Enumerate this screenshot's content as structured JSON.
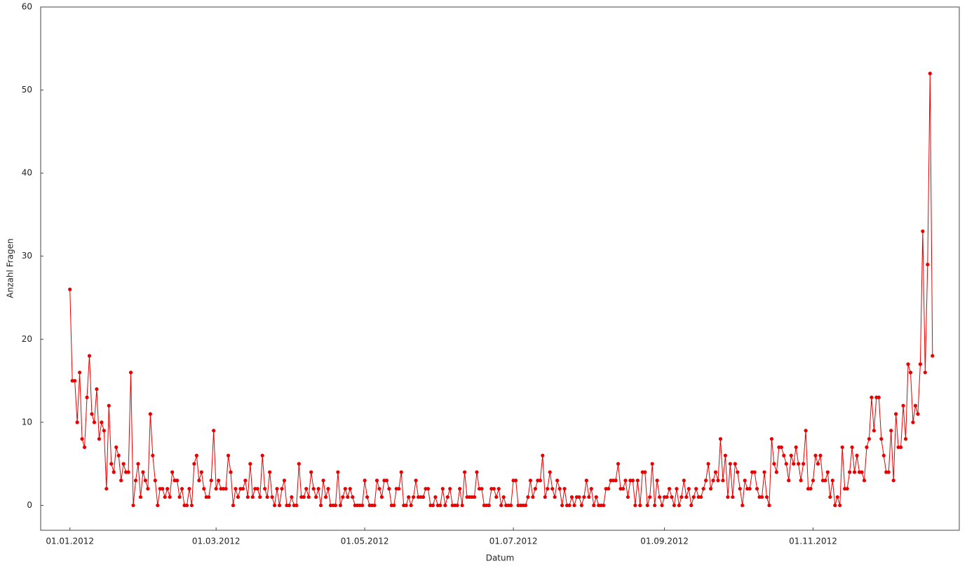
{
  "chart_data": {
    "type": "line",
    "x_label": "Datum",
    "y_label": "Anzahl Fragen",
    "x": [
      "01.01.2012",
      "02.01.2012",
      "03.01.2012",
      "04.01.2012",
      "05.01.2012",
      "06.01.2012",
      "07.01.2012",
      "08.01.2012",
      "09.01.2012",
      "10.01.2012",
      "11.01.2012",
      "12.01.2012",
      "13.01.2012",
      "14.01.2012",
      "15.01.2012",
      "16.01.2012",
      "17.01.2012",
      "18.01.2012",
      "19.01.2012",
      "20.01.2012",
      "21.01.2012",
      "22.01.2012",
      "23.01.2012",
      "24.01.2012",
      "25.01.2012",
      "26.01.2012",
      "27.01.2012",
      "28.01.2012",
      "29.01.2012",
      "30.01.2012",
      "31.01.2012",
      "01.02.2012",
      "02.02.2012",
      "03.02.2012",
      "04.02.2012",
      "05.02.2012",
      "06.02.2012",
      "07.02.2012",
      "08.02.2012",
      "09.02.2012",
      "10.02.2012",
      "11.02.2012",
      "12.02.2012",
      "13.02.2012",
      "14.02.2012",
      "15.02.2012",
      "16.02.2012",
      "17.02.2012",
      "18.02.2012",
      "19.02.2012",
      "20.02.2012",
      "21.02.2012",
      "22.02.2012",
      "23.02.2012",
      "24.02.2012",
      "25.02.2012",
      "26.02.2012",
      "27.02.2012",
      "28.02.2012",
      "29.02.2012",
      "01.03.2012",
      "02.03.2012",
      "03.03.2012",
      "04.03.2012",
      "05.03.2012",
      "06.03.2012",
      "07.03.2012",
      "08.03.2012",
      "09.03.2012",
      "10.03.2012",
      "11.03.2012",
      "12.03.2012",
      "13.03.2012",
      "14.03.2012",
      "15.03.2012",
      "16.03.2012",
      "17.03.2012",
      "18.03.2012",
      "19.03.2012",
      "20.03.2012",
      "21.03.2012",
      "22.03.2012",
      "23.03.2012",
      "24.03.2012",
      "25.03.2012",
      "26.03.2012",
      "27.03.2012",
      "28.03.2012",
      "29.03.2012",
      "30.03.2012",
      "31.03.2012",
      "01.04.2012",
      "02.04.2012",
      "03.04.2012",
      "04.04.2012",
      "05.04.2012",
      "06.04.2012",
      "07.04.2012",
      "08.04.2012",
      "09.04.2012",
      "10.04.2012",
      "11.04.2012",
      "12.04.2012",
      "13.04.2012",
      "14.04.2012",
      "15.04.2012",
      "16.04.2012",
      "17.04.2012",
      "18.04.2012",
      "19.04.2012",
      "20.04.2012",
      "21.04.2012",
      "22.04.2012",
      "23.04.2012",
      "24.04.2012",
      "25.04.2012",
      "26.04.2012",
      "27.04.2012",
      "28.04.2012",
      "29.04.2012",
      "30.04.2012",
      "01.05.2012",
      "02.05.2012",
      "03.05.2012",
      "04.05.2012",
      "05.05.2012",
      "06.05.2012",
      "07.05.2012",
      "08.05.2012",
      "09.05.2012",
      "10.05.2012",
      "11.05.2012",
      "12.05.2012",
      "13.05.2012",
      "14.05.2012",
      "15.05.2012",
      "16.05.2012",
      "17.05.2012",
      "18.05.2012",
      "19.05.2012",
      "20.05.2012",
      "21.05.2012",
      "22.05.2012",
      "23.05.2012",
      "24.05.2012",
      "25.05.2012",
      "26.05.2012",
      "27.05.2012",
      "28.05.2012",
      "29.05.2012",
      "30.05.2012",
      "31.05.2012",
      "01.06.2012",
      "02.06.2012",
      "03.06.2012",
      "04.06.2012",
      "05.06.2012",
      "06.06.2012",
      "07.06.2012",
      "08.06.2012",
      "09.06.2012",
      "10.06.2012",
      "11.06.2012",
      "12.06.2012",
      "13.06.2012",
      "14.06.2012",
      "15.06.2012",
      "16.06.2012",
      "17.06.2012",
      "18.06.2012",
      "19.06.2012",
      "20.06.2012",
      "21.06.2012",
      "22.06.2012",
      "23.06.2012",
      "24.06.2012",
      "25.06.2012",
      "26.06.2012",
      "27.06.2012",
      "28.06.2012",
      "29.06.2012",
      "30.06.2012",
      "01.07.2012",
      "02.07.2012",
      "03.07.2012",
      "04.07.2012",
      "05.07.2012",
      "06.07.2012",
      "07.07.2012",
      "08.07.2012",
      "09.07.2012",
      "10.07.2012",
      "11.07.2012",
      "12.07.2012",
      "13.07.2012",
      "14.07.2012",
      "15.07.2012",
      "16.07.2012",
      "17.07.2012",
      "18.07.2012",
      "19.07.2012",
      "20.07.2012",
      "21.07.2012",
      "22.07.2012",
      "23.07.2012",
      "24.07.2012",
      "25.07.2012",
      "26.07.2012",
      "27.07.2012",
      "28.07.2012",
      "29.07.2012",
      "30.07.2012",
      "31.07.2012",
      "01.08.2012",
      "02.08.2012",
      "03.08.2012",
      "04.08.2012",
      "05.08.2012",
      "06.08.2012",
      "07.08.2012",
      "08.08.2012",
      "09.08.2012",
      "10.08.2012",
      "11.08.2012",
      "12.08.2012",
      "13.08.2012",
      "14.08.2012",
      "15.08.2012",
      "16.08.2012",
      "17.08.2012",
      "18.08.2012",
      "19.08.2012",
      "20.08.2012",
      "21.08.2012",
      "22.08.2012",
      "23.08.2012",
      "24.08.2012",
      "25.08.2012",
      "26.08.2012",
      "27.08.2012",
      "28.08.2012",
      "29.08.2012",
      "30.08.2012",
      "31.08.2012",
      "01.09.2012",
      "02.09.2012",
      "03.09.2012",
      "04.09.2012",
      "05.09.2012",
      "06.09.2012",
      "07.09.2012",
      "08.09.2012",
      "09.09.2012",
      "10.09.2012",
      "11.09.2012",
      "12.09.2012",
      "13.09.2012",
      "14.09.2012",
      "15.09.2012",
      "16.09.2012",
      "17.09.2012",
      "18.09.2012",
      "19.09.2012",
      "20.09.2012",
      "21.09.2012",
      "22.09.2012",
      "23.09.2012",
      "24.09.2012",
      "25.09.2012",
      "26.09.2012",
      "27.09.2012",
      "28.09.2012",
      "29.09.2012",
      "30.09.2012",
      "01.10.2012",
      "02.10.2012",
      "03.10.2012",
      "04.10.2012",
      "05.10.2012",
      "06.10.2012",
      "07.10.2012",
      "08.10.2012",
      "09.10.2012",
      "10.10.2012",
      "11.10.2012",
      "12.10.2012",
      "13.10.2012",
      "14.10.2012",
      "15.10.2012",
      "16.10.2012",
      "17.10.2012",
      "18.10.2012",
      "19.10.2012",
      "20.10.2012",
      "21.10.2012",
      "22.10.2012",
      "23.10.2012",
      "24.10.2012",
      "25.10.2012",
      "26.10.2012",
      "27.10.2012",
      "28.10.2012",
      "29.10.2012",
      "30.10.2012",
      "31.10.2012",
      "01.11.2012",
      "02.11.2012",
      "03.11.2012",
      "04.11.2012",
      "05.11.2012",
      "06.11.2012",
      "07.11.2012",
      "08.11.2012",
      "09.11.2012",
      "10.11.2012",
      "11.11.2012",
      "12.11.2012",
      "13.11.2012",
      "14.11.2012",
      "15.11.2012",
      "16.11.2012",
      "17.11.2012",
      "18.11.2012",
      "19.11.2012",
      "20.11.2012",
      "21.11.2012",
      "22.11.2012",
      "23.11.2012",
      "24.11.2012",
      "25.11.2012",
      "26.11.2012",
      "27.11.2012",
      "28.11.2012",
      "29.11.2012",
      "30.11.2012",
      "01.12.2012",
      "02.12.2012",
      "03.12.2012",
      "04.12.2012",
      "05.12.2012",
      "06.12.2012",
      "07.12.2012",
      "08.12.2012",
      "09.12.2012",
      "10.12.2012",
      "11.12.2012",
      "12.12.2012",
      "13.12.2012",
      "14.12.2012",
      "15.12.2012",
      "16.12.2012",
      "17.12.2012",
      "18.12.2012",
      "19.12.2012",
      "20.12.2012"
    ],
    "series": [
      {
        "color": "#e80000",
        "values": [
          26,
          15,
          15,
          10,
          16,
          8,
          7,
          13,
          18,
          11,
          10,
          14,
          8,
          10,
          9,
          2,
          12,
          5,
          4,
          7,
          6,
          3,
          5,
          4,
          4,
          16,
          0,
          3,
          5,
          1,
          4,
          3,
          2,
          11,
          6,
          3,
          0,
          2,
          2,
          1,
          2,
          1,
          4,
          3,
          3,
          1,
          2,
          0,
          0,
          2,
          0,
          5,
          6,
          3,
          4,
          2,
          1,
          1,
          3,
          9,
          2,
          3,
          2,
          2,
          2,
          6,
          4,
          0,
          2,
          1,
          2,
          2,
          3,
          1,
          5,
          1,
          2,
          2,
          1,
          6,
          2,
          1,
          4,
          1,
          0,
          2,
          0,
          2,
          3,
          0,
          0,
          1,
          0,
          0,
          5,
          1,
          1,
          2,
          1,
          4,
          2,
          1,
          2,
          0,
          3,
          1,
          2,
          0,
          0,
          0,
          4,
          0,
          1,
          2,
          1,
          2,
          1,
          0,
          0,
          0,
          0,
          3,
          1,
          0,
          0,
          0,
          3,
          2,
          1,
          3,
          3,
          2,
          0,
          0,
          2,
          2,
          4,
          0,
          0,
          1,
          0,
          1,
          3,
          1,
          1,
          1,
          2,
          2,
          0,
          0,
          1,
          0,
          0,
          2,
          0,
          1,
          2,
          0,
          0,
          0,
          2,
          0,
          4,
          1,
          1,
          1,
          1,
          4,
          2,
          2,
          0,
          0,
          0,
          2,
          2,
          1,
          2,
          0,
          1,
          0,
          0,
          0,
          3,
          3,
          0,
          0,
          0,
          0,
          1,
          3,
          1,
          2,
          3,
          3,
          6,
          1,
          2,
          4,
          2,
          1,
          3,
          2,
          0,
          2,
          0,
          0,
          1,
          0,
          1,
          1,
          0,
          1,
          3,
          1,
          2,
          0,
          1,
          0,
          0,
          0,
          2,
          2,
          3,
          3,
          3,
          5,
          2,
          2,
          3,
          1,
          3,
          3,
          0,
          3,
          0,
          4,
          4,
          0,
          1,
          5,
          0,
          3,
          1,
          0,
          1,
          1,
          2,
          1,
          0,
          2,
          0,
          1,
          3,
          1,
          2,
          0,
          1,
          2,
          1,
          1,
          2,
          3,
          5,
          2,
          3,
          4,
          3,
          8,
          3,
          6,
          1,
          5,
          1,
          5,
          4,
          2,
          0,
          3,
          2,
          2,
          4,
          4,
          2,
          1,
          1,
          4,
          1,
          0,
          8,
          5,
          4,
          7,
          7,
          6,
          5,
          3,
          6,
          5,
          7,
          5,
          3,
          5,
          9,
          2,
          2,
          3,
          6,
          5,
          6,
          3,
          3,
          4,
          1,
          3,
          0,
          1,
          0,
          7,
          2,
          2,
          4,
          7,
          4,
          6,
          4,
          4,
          3,
          7,
          8,
          13,
          9,
          13,
          13,
          8,
          6,
          4,
          4,
          9,
          3,
          11,
          7,
          7,
          12,
          8,
          17,
          16,
          10,
          12,
          11,
          17,
          33,
          16,
          29,
          52,
          18
        ]
      }
    ],
    "xlim": [
      "20.12.2011",
      "31.12.2012"
    ],
    "xticks": [
      "01.01.2012",
      "01.03.2012",
      "01.05.2012",
      "01.07.2012",
      "01.09.2012",
      "01.11.2012"
    ],
    "ylim": [
      -3,
      60
    ],
    "yticks": [
      0,
      10,
      20,
      30,
      40,
      50,
      60
    ],
    "grid": false
  }
}
